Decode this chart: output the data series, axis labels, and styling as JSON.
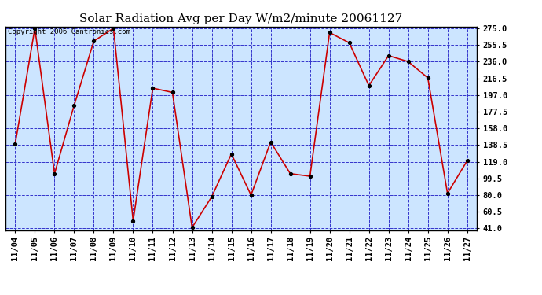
{
  "title": "Solar Radiation Avg per Day W/m2/minute 20061127",
  "copyright_text": "Copyright 2006 Cantronics.com",
  "x_labels": [
    "11/04",
    "11/05",
    "11/06",
    "11/07",
    "11/08",
    "11/09",
    "11/10",
    "11/11",
    "11/12",
    "11/13",
    "11/14",
    "11/15",
    "11/16",
    "11/17",
    "11/18",
    "11/19",
    "11/20",
    "11/21",
    "11/22",
    "11/23",
    "11/24",
    "11/25",
    "11/26",
    "11/27"
  ],
  "y_values": [
    140,
    275,
    105,
    185,
    260,
    275,
    50,
    205,
    200,
    42,
    78,
    128,
    80,
    142,
    105,
    102,
    270,
    258,
    208,
    243,
    236,
    217,
    82,
    120
  ],
  "y_min": 41.0,
  "y_max": 275.0,
  "y_ticks": [
    41.0,
    60.5,
    80.0,
    99.5,
    119.0,
    138.5,
    158.0,
    177.5,
    197.0,
    216.5,
    236.0,
    255.5,
    275.0
  ],
  "line_color": "#cc0000",
  "marker_color": "#000000",
  "bg_color": "#ffffff",
  "plot_bg_color": "#cce5ff",
  "grid_color": "#3333cc",
  "border_color": "#000000",
  "title_fontsize": 11,
  "tick_fontsize": 7.5,
  "copyright_fontsize": 6.5
}
